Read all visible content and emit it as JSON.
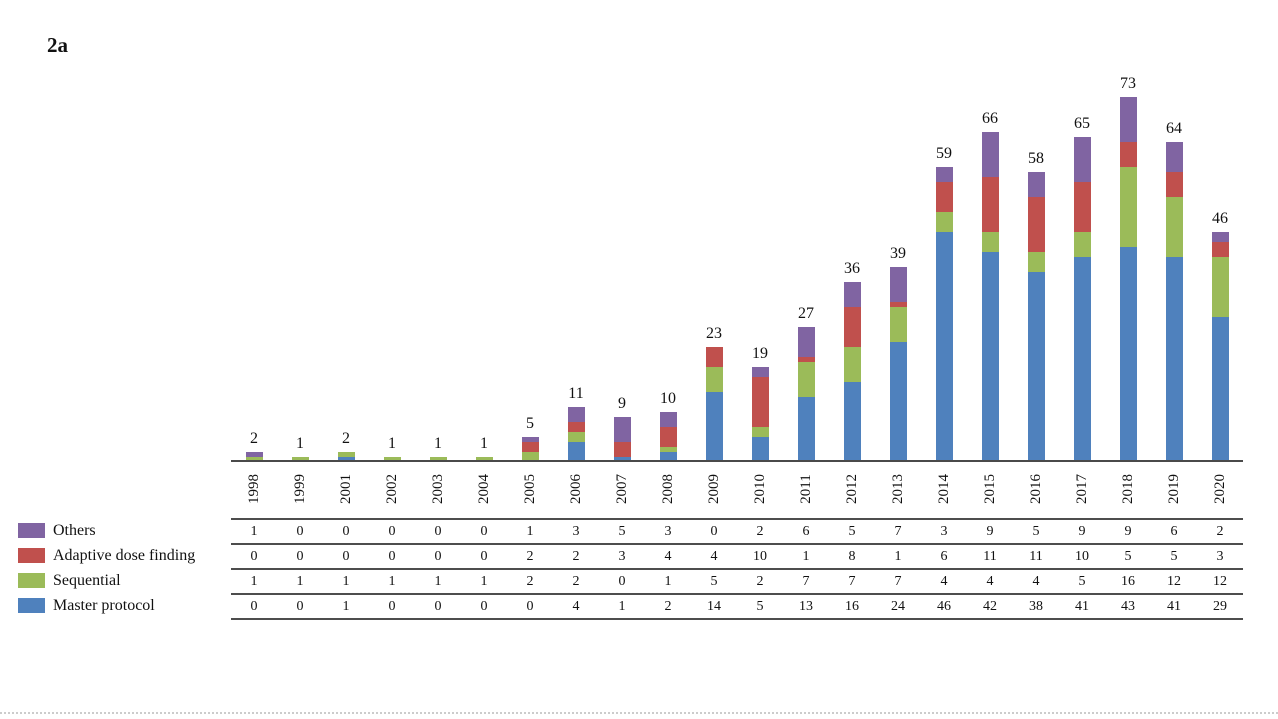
{
  "figure_label": "2a",
  "colors": {
    "others": "#8064A2",
    "adaptive_dose_finding": "#C0504D",
    "sequential": "#9BBB59",
    "master_protocol": "#4F81BD",
    "axis_line": "#4a4a4a",
    "table_line": "#4d4d4d"
  },
  "chart_data": {
    "type": "bar",
    "stacked": true,
    "title": "",
    "xlabel": "",
    "ylabel": "",
    "ylim": [
      0,
      73
    ],
    "grid": false,
    "legend_position": "bottom-left as table row headers",
    "categories": [
      "1998",
      "1999",
      "2001",
      "2002",
      "2003",
      "2004",
      "2005",
      "2006",
      "2007",
      "2008",
      "2009",
      "2010",
      "2011",
      "2012",
      "2013",
      "2014",
      "2015",
      "2016",
      "2017",
      "2018",
      "2019",
      "2020"
    ],
    "series": [
      {
        "name": "Master protocol",
        "color": "#4F81BD",
        "values": [
          0,
          0,
          1,
          0,
          0,
          0,
          0,
          4,
          1,
          2,
          14,
          5,
          13,
          16,
          24,
          46,
          42,
          38,
          41,
          43,
          41,
          29
        ]
      },
      {
        "name": "Sequential",
        "color": "#9BBB59",
        "values": [
          1,
          1,
          1,
          1,
          1,
          1,
          2,
          2,
          0,
          1,
          5,
          2,
          7,
          7,
          7,
          4,
          4,
          4,
          5,
          16,
          12,
          12
        ]
      },
      {
        "name": "Adaptive dose finding",
        "color": "#C0504D",
        "values": [
          0,
          0,
          0,
          0,
          0,
          0,
          2,
          2,
          3,
          4,
          4,
          10,
          1,
          8,
          1,
          6,
          11,
          11,
          10,
          5,
          5,
          3
        ]
      },
      {
        "name": "Others",
        "color": "#8064A2",
        "values": [
          1,
          0,
          0,
          0,
          0,
          0,
          1,
          3,
          5,
          3,
          0,
          2,
          6,
          5,
          7,
          3,
          9,
          5,
          9,
          9,
          6,
          2
        ]
      }
    ],
    "totals": [
      2,
      1,
      2,
      1,
      1,
      1,
      5,
      11,
      9,
      10,
      23,
      19,
      27,
      36,
      39,
      59,
      66,
      58,
      65,
      73,
      64,
      46
    ],
    "bar_value_labels_shown": true
  },
  "legend_table": {
    "row_order": [
      "Others",
      "Adaptive dose finding",
      "Sequential",
      "Master protocol"
    ]
  }
}
